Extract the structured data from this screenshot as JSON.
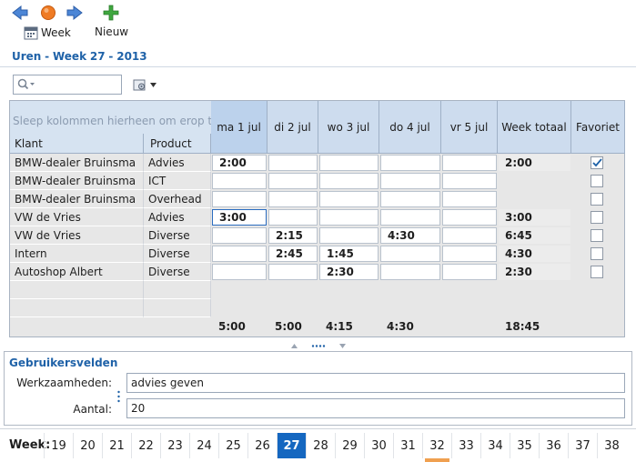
{
  "toolbar": {
    "week_label": "Week",
    "new_label": "Nieuw"
  },
  "title": {
    "prefix": "Uren",
    "sep1": "-",
    "week_word": "Week",
    "week_nr": "27",
    "sep2": "-",
    "year": "2013"
  },
  "grid": {
    "group_hint": "Sleep kolommen hierheen om erop te",
    "col_klant": "Klant",
    "col_product": "Product",
    "days": [
      "ma 1 jul",
      "di 2 jul",
      "wo 3 jul",
      "do 4 jul",
      "vr 5 jul"
    ],
    "col_week_total": "Week totaal",
    "col_favoriet": "Favoriet",
    "rows": [
      {
        "klant": "BMW-dealer Bruinsma",
        "product": "Advies",
        "ma": "2:00",
        "di": "",
        "wo": "",
        "do": "",
        "vr": "",
        "total": "2:00",
        "fav": true
      },
      {
        "klant": "BMW-dealer Bruinsma",
        "product": "ICT",
        "ma": "",
        "di": "",
        "wo": "",
        "do": "",
        "vr": "",
        "total": "",
        "fav": false
      },
      {
        "klant": "BMW-dealer Bruinsma",
        "product": "Overhead",
        "ma": "",
        "di": "",
        "wo": "",
        "do": "",
        "vr": "",
        "total": "",
        "fav": false
      },
      {
        "klant": "VW de Vries",
        "product": "Advies",
        "ma": "3:00",
        "di": "",
        "wo": "",
        "do": "",
        "vr": "",
        "total": "3:00",
        "fav": false
      },
      {
        "klant": "VW de Vries",
        "product": "Diverse",
        "ma": "",
        "di": "2:15",
        "wo": "",
        "do": "4:30",
        "vr": "",
        "total": "6:45",
        "fav": false
      },
      {
        "klant": "Intern",
        "product": "Diverse",
        "ma": "",
        "di": "2:45",
        "wo": "1:45",
        "do": "",
        "vr": "",
        "total": "4:30",
        "fav": false
      },
      {
        "klant": "Autoshop Albert",
        "product": "Diverse",
        "ma": "",
        "di": "",
        "wo": "2:30",
        "do": "",
        "vr": "",
        "total": "2:30",
        "fav": false
      }
    ],
    "totals": {
      "ma": "5:00",
      "di": "5:00",
      "wo": "4:15",
      "do": "4:30",
      "vr": "",
      "week": "18:45"
    }
  },
  "fields": {
    "title": "Gebruikersvelden",
    "werk_label": "Werkzaamheden:",
    "werk_value": "advies geven",
    "aantal_label": "Aantal:",
    "aantal_value": "20"
  },
  "weeks": {
    "label": "Week:",
    "items": [
      "19",
      "20",
      "21",
      "22",
      "23",
      "24",
      "25",
      "26",
      "27",
      "28",
      "29",
      "30",
      "31",
      "32",
      "33",
      "34",
      "35",
      "36",
      "37",
      "38"
    ],
    "current": "27",
    "marked": "32"
  },
  "colors": {
    "accent": "#1f62a8",
    "current_week": "#1567c0",
    "marked_week": "#f0a050",
    "header_bg": "#cddcee"
  },
  "icons": {
    "back": "arrow-left-icon",
    "home": "home-circle-icon",
    "forward": "arrow-right-icon",
    "new": "plus-icon",
    "week": "calendar-icon",
    "search": "search-icon",
    "settings": "gear-icon"
  }
}
